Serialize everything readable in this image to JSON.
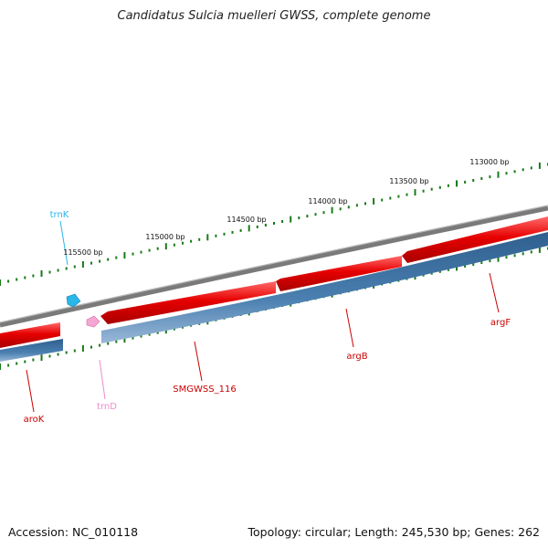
{
  "title": "Candidatus Sulcia muelleri GWSS, complete genome",
  "footer": {
    "accession": "Accession: NC_010118",
    "summary": "Topology: circular; Length: 245,530 bp; Genes: 262"
  },
  "colors": {
    "backbone": "#808080",
    "forward_gene": "#e60000",
    "reverse_gene": "#4a7fb0",
    "ticks": "#1a7a1a",
    "trna_k": "#29b6e8",
    "trna_d": "#f08cc8",
    "gene_label": "#cc0000"
  },
  "ticks": {
    "labels": [
      "115500 bp",
      "115000 bp",
      "114500 bp",
      "114000 bp",
      "113500 bp",
      "113000 bp"
    ]
  },
  "genes": [
    {
      "name": "aroK",
      "strand": "reverse",
      "color": "#cc0000"
    },
    {
      "name": "trnD",
      "strand": "reverse",
      "color": "#f08cc8"
    },
    {
      "name": "trnK",
      "strand": "forward",
      "color": "#29b6e8"
    },
    {
      "name": "SMGWSS_116",
      "strand": "reverse",
      "color": "#cc0000"
    },
    {
      "name": "argB",
      "strand": "reverse",
      "color": "#cc0000"
    },
    {
      "name": "argF",
      "strand": "reverse",
      "color": "#cc0000"
    }
  ]
}
